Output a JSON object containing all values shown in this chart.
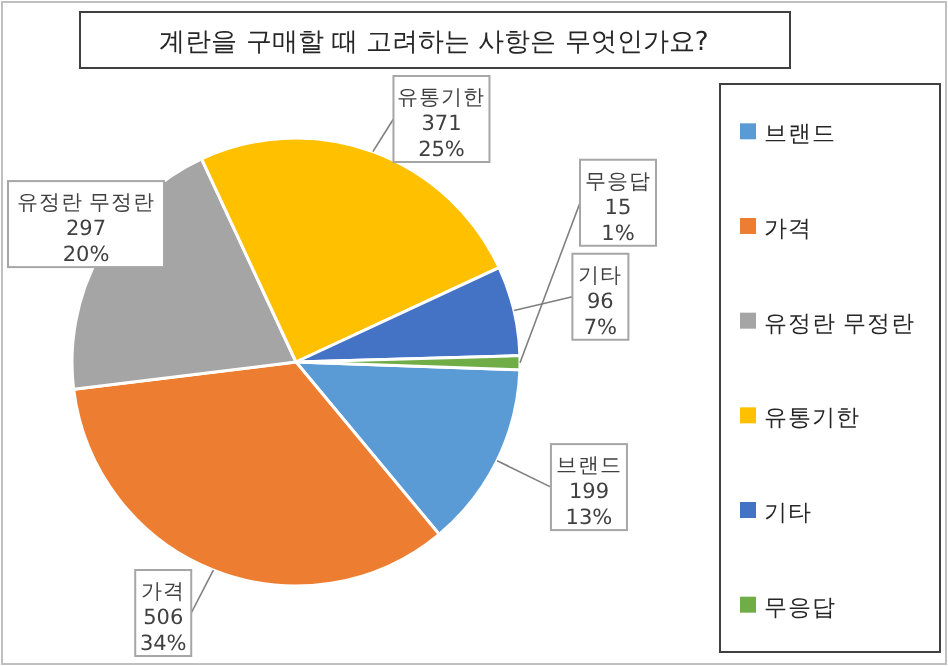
{
  "chart_data": {
    "type": "pie",
    "title": "계란을 구매할 때 고려하는 사항은 무엇인가요?",
    "categories": [
      "브랜드",
      "가격",
      "유정란 무정란",
      "유통기한",
      "기타",
      "무응답"
    ],
    "values": [
      199,
      506,
      297,
      371,
      96,
      15
    ],
    "colors": [
      "#5b9bd5",
      "#ed7d31",
      "#a5a5a5",
      "#ffc000",
      "#4472c4",
      "#70ad47"
    ],
    "value_labels": [
      "199\n13%",
      "506\n34%",
      "297\n20%",
      "371\n25%",
      "96\n7%",
      "15\n1%"
    ],
    "legend": "right"
  }
}
